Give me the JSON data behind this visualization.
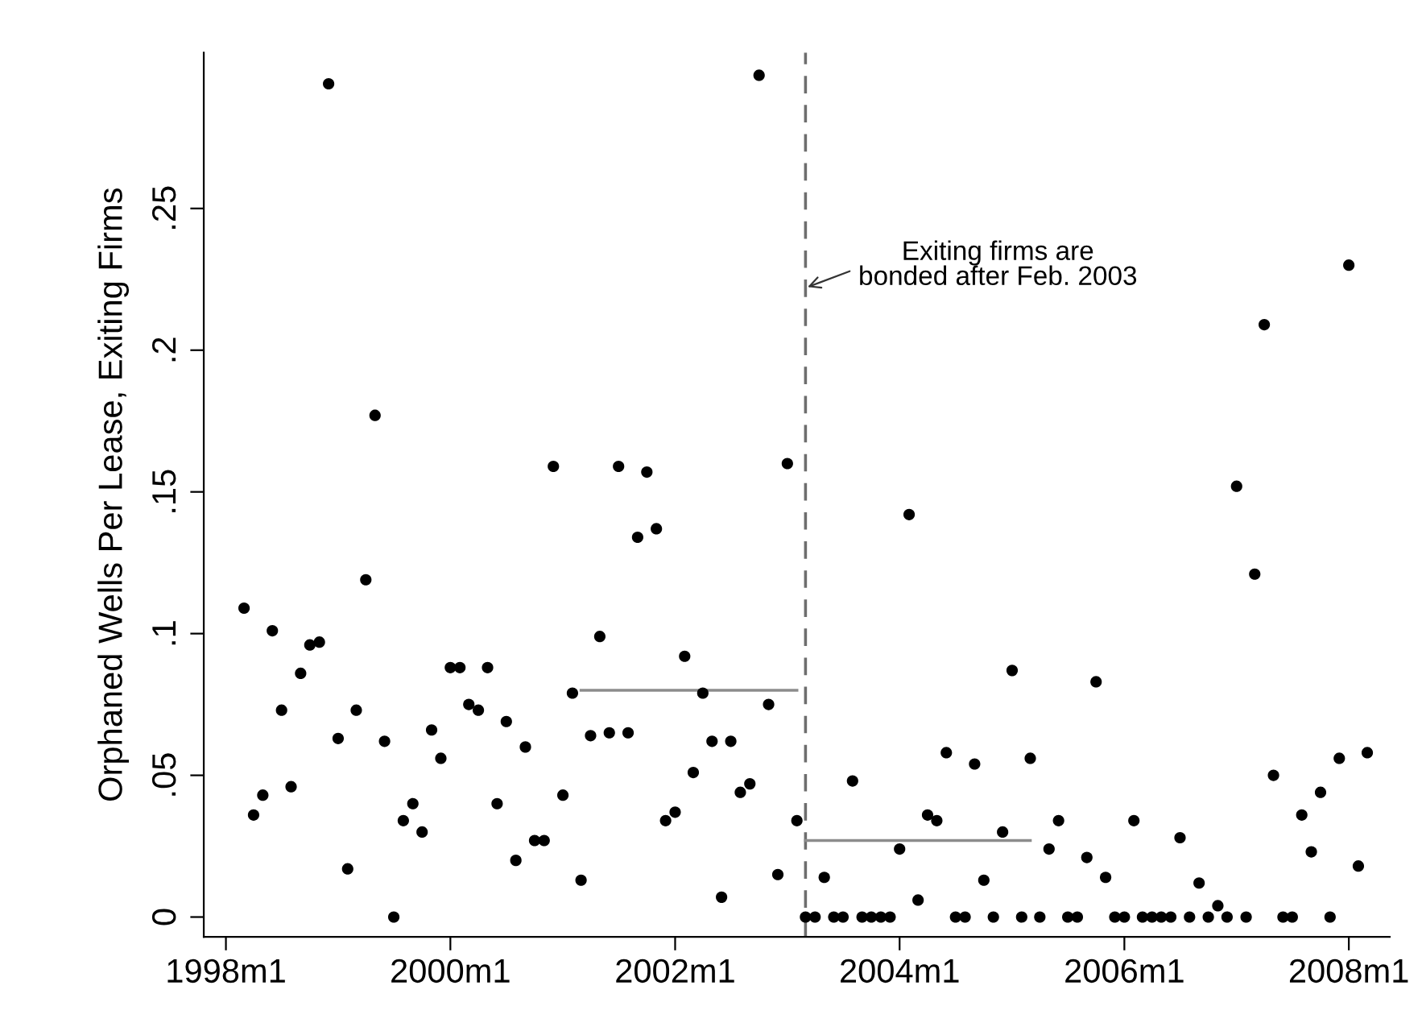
{
  "chart_data": {
    "type": "scatter",
    "ylabel": "Orphaned Wells Per Lease, Exiting Firms",
    "x": [
      "1998-03",
      "1998-04",
      "1998-05",
      "1998-06",
      "1998-07",
      "1998-08",
      "1998-09",
      "1998-10",
      "1998-11",
      "1998-12",
      "1999-01",
      "1999-02",
      "1999-03",
      "1999-04",
      "1999-05",
      "1999-06",
      "1999-07",
      "1999-08",
      "1999-09",
      "1999-10",
      "1999-11",
      "1999-12",
      "2000-01",
      "2000-02",
      "2000-03",
      "2000-04",
      "2000-05",
      "2000-06",
      "2000-07",
      "2000-08",
      "2000-09",
      "2000-10",
      "2000-11",
      "2000-12",
      "2001-01",
      "2001-02",
      "2001-03",
      "2001-04",
      "2001-05",
      "2001-06",
      "2001-07",
      "2001-08",
      "2001-09",
      "2001-10",
      "2001-11",
      "2001-12",
      "2002-01",
      "2002-02",
      "2002-03",
      "2002-04",
      "2002-05",
      "2002-06",
      "2002-07",
      "2002-08",
      "2002-09",
      "2002-10",
      "2002-11",
      "2002-12",
      "2003-01",
      "2003-02",
      "2003-03",
      "2003-04",
      "2003-05",
      "2003-06",
      "2003-07",
      "2003-08",
      "2003-09",
      "2003-10",
      "2003-11",
      "2003-12",
      "2004-01",
      "2004-02",
      "2004-03",
      "2004-04",
      "2004-05",
      "2004-06",
      "2004-07",
      "2004-08",
      "2004-09",
      "2004-10",
      "2004-11",
      "2004-12",
      "2005-01",
      "2005-02",
      "2005-03",
      "2005-04",
      "2005-05",
      "2005-06",
      "2005-07",
      "2005-08",
      "2005-09",
      "2005-10",
      "2005-11",
      "2005-12",
      "2006-01",
      "2006-02",
      "2006-03",
      "2006-04",
      "2006-05",
      "2006-06",
      "2006-07",
      "2006-08",
      "2006-09",
      "2006-10",
      "2006-11",
      "2006-12",
      "2007-01",
      "2007-02",
      "2007-03",
      "2007-04",
      "2007-05",
      "2007-06",
      "2007-07",
      "2007-08",
      "2007-09",
      "2007-10",
      "2007-11",
      "2007-12",
      "2008-01",
      "2008-02",
      "2008-03"
    ],
    "series": [
      {
        "marker": "circle",
        "color": "#000000",
        "values": [
          0.109,
          0.036,
          0.043,
          0.101,
          0.073,
          0.046,
          0.086,
          0.096,
          0.097,
          0.294,
          0.063,
          0.017,
          0.073,
          0.119,
          0.177,
          0.062,
          0,
          0.034,
          0.04,
          0.03,
          0.066,
          0.056,
          0.088,
          0.088,
          0.075,
          0.073,
          0.088,
          0.04,
          0.069,
          0.02,
          0.06,
          0.027,
          0.027,
          0.159,
          0.043,
          0.079,
          0.013,
          0.064,
          0.099,
          0.065,
          0.159,
          0.065,
          0.134,
          0.157,
          0.137,
          0.034,
          0.037,
          0.092,
          0.051,
          0.079,
          0.062,
          0.007,
          0.062,
          0.044,
          0.047,
          0.297,
          0.075,
          0.015,
          0.16,
          0.034,
          0,
          0,
          0.014,
          0,
          0,
          0.048,
          0,
          0,
          0,
          0,
          0.024,
          0.142,
          0.006,
          0.036,
          0.034,
          0.058,
          0,
          0,
          0.054,
          0.013,
          0,
          0.03,
          0.087,
          0,
          0.056,
          0,
          0.024,
          0.034,
          0,
          0,
          0.021,
          0.083,
          0.014,
          0,
          0,
          0.034,
          0,
          0,
          0,
          0,
          0.028,
          0,
          0.012,
          0,
          0.004,
          0,
          0.152,
          0,
          0.121,
          0.209,
          0.05,
          0,
          0,
          0.036,
          0.023,
          0.044,
          0,
          0.056,
          0.23,
          0.018,
          0.058
        ]
      },
      {
        "type": "line",
        "color": "#8c8c8c",
        "x": [
          "2001-03",
          "2003-02"
        ],
        "values": [
          0.08,
          0.08
        ]
      },
      {
        "type": "line",
        "color": "#8c8c8c",
        "x": [
          "2003-03",
          "2005-03"
        ],
        "values": [
          0.027,
          0.027
        ]
      }
    ],
    "grid": false,
    "legend": false,
    "xlim": [
      "1997-10-21",
      "2008-05-13"
    ],
    "xticks": [
      {
        "value": "1998-01",
        "label": "1998m1"
      },
      {
        "value": "2000-01",
        "label": "2000m1"
      },
      {
        "value": "2002-01",
        "label": "2002m1"
      },
      {
        "value": "2004-01",
        "label": "2004m1"
      },
      {
        "value": "2006-01",
        "label": "2006m1"
      },
      {
        "value": "2008-01",
        "label": "2008m1"
      }
    ],
    "ylim": [
      -0.007,
      0.305
    ],
    "yticks": [
      {
        "value": 0,
        "label": "0"
      },
      {
        "value": 0.05,
        "label": ".05"
      },
      {
        "value": 0.1,
        "label": ".1"
      },
      {
        "value": 0.15,
        "label": ".15"
      },
      {
        "value": 0.2,
        "label": ".2"
      },
      {
        "value": 0.25,
        "label": ".25"
      }
    ],
    "ref_lines": [
      {
        "axis": "x",
        "value": "2003-03",
        "label": null,
        "color": "#6e6e6e",
        "line_style": "dashed"
      }
    ],
    "annotations": [
      {
        "text": "Exiting firms are\nbonded after Feb. 2003",
        "x": "2003-03",
        "y": 0.222
      }
    ]
  }
}
